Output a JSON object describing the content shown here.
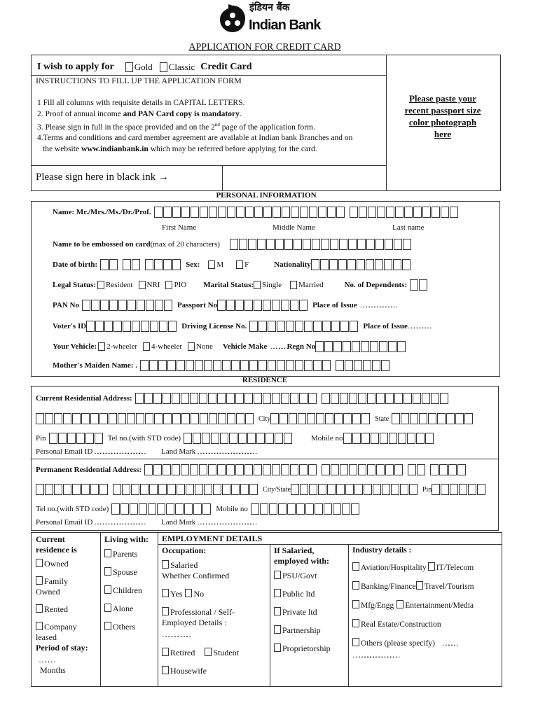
{
  "logo": {
    "hindi": "इंडियन बैंक",
    "english": "Indian Bank"
  },
  "title": "APPLICATION FOR CREDIT CARD",
  "apply": {
    "label": "I wish to apply for",
    "gold": "Gold",
    "classic": "Classic",
    "suffix": "Credit Card"
  },
  "instructions": {
    "heading": "INSTRUCTIONS TO FILL UP THE APPLICATION FORM",
    "items": [
      "1  Fill all columns with requisite details in CAPITAL LETTERS.",
      "2. Proof of annual income ",
      "and PAN Card copy is mandatory",
      ".",
      "3. Please sign in full in the space provided and on the 2",
      "nd",
      " page of  the application form.",
      "4.Terms and conditions and card member agreement are available at Indian bank Branches and on",
      "the website ",
      "www.indianbank.in",
      " which may be referred before applying for the card."
    ]
  },
  "sign": "Please sign here in black ink →",
  "photo": "Please paste your recent passport size color photograph here",
  "personal": {
    "heading": "PERSONAL INFORMATION",
    "name": "Name:  Mr./Mrs./Ms./Dr./Prof.",
    "first": "First Name",
    "middle": "Middle Name",
    "last": "Last name",
    "emboss": "Name to be embossed on card",
    "emboss_note": " (max of 20 characters)",
    "dob": "Date of birth:",
    "sex": "Sex:",
    "m": "M",
    "f": "F",
    "nationality": "Nationality",
    "legal": "Legal Status:",
    "resident": "Resident",
    "nri": "NRI",
    "pio": "PIO",
    "marital": "Marital Status:",
    "single": "Single",
    "married": "Married",
    "dependents": "No. of Dependents:",
    "pan": "PAN No",
    "passport": "Passport No",
    "place": "Place of Issue",
    "place_dots": "………………………………",
    "voter": "Voter's ID",
    "driving": "Driving License No.",
    "place2_dots": "…………………",
    "vehicle": "Your Vehicle:",
    "two": "2-wheeler",
    "four": "4-wheeler",
    "none": "None",
    "make": "Vehicle Make",
    "make_dots": "……………..",
    "regn": "Regn No",
    "mother": "Mother's Maiden Name: ."
  },
  "residence": {
    "heading": "RESIDENCE",
    "current": "Current Residential  Address:",
    "city": "City",
    "state": "State",
    "pin": "Pin",
    "tel": "Tel no.(with STD code)",
    "mobile": "Mobile no",
    "email": "Personal Email ID",
    "email_dots": "……………………………………………..",
    "landmark": "Land Mark",
    "landmark_dots": "……………………………………………………",
    "permanent": "Permanent Residential Address:",
    "citystate": "City/State"
  },
  "bottom": {
    "current_res": {
      "heading": "Current residence is",
      "options": [
        "Owned",
        "Family Owned",
        "Rented",
        "Company leased"
      ],
      "period": "Period of stay:",
      "dots": "…………",
      "months": "Months"
    },
    "living": {
      "heading": "Living with:",
      "options": [
        "Parents",
        "Spouse",
        "Children",
        "Alone",
        "Others"
      ]
    },
    "employment": {
      "heading": "EMPLOYMENT DETAILS",
      "occupation": "Occupation:",
      "salaried": "Salaried",
      "confirmed": "Whether Confirmed",
      "yes": "Yes",
      "no": "No",
      "professional": "Professional  / Self-Employed  Details :",
      "dots": "…………………….….",
      "retired": "Retired",
      "student": "Student",
      "housewife": "Housewife",
      "salaried_heading": "If Salaried, employed with:",
      "employers": [
        "PSU/Govt",
        "Public ltd",
        "Private ltd",
        "Partnership",
        "Proprietorship"
      ],
      "industry_heading": "Industry details :",
      "industries": [
        "Aviation/Hospitality",
        "IT/Telecom",
        "Banking/Finance",
        "Travel/Tourism",
        "Mfg/Engg",
        "Entertainment/Media",
        "Real Estate/Construction",
        "Others  (please  specify)"
      ],
      "industry_dots1": "…………",
      "industry_dots2": "………………. …………………………….."
    }
  }
}
